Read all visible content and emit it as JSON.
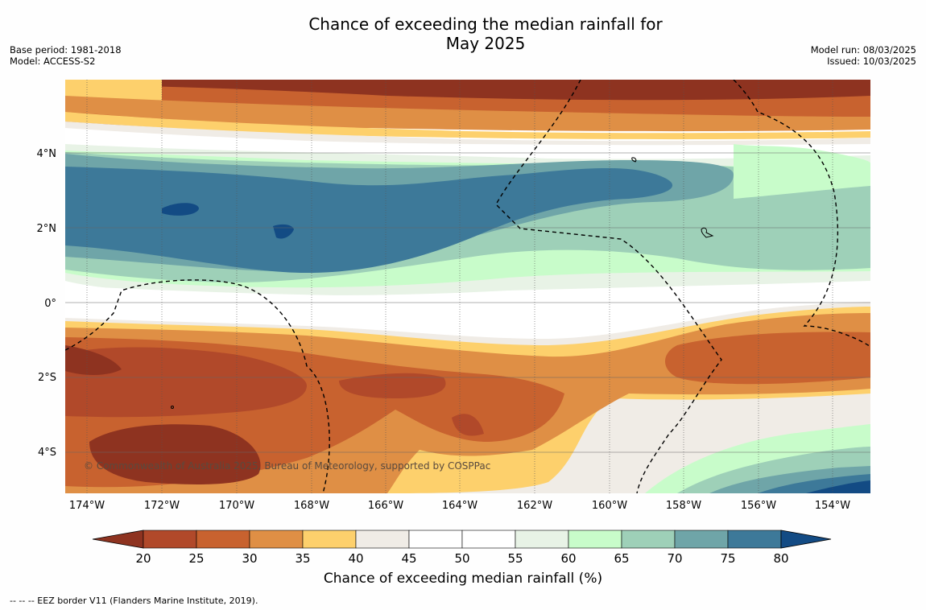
{
  "title_line1": "Chance of exceeding the median rainfall for",
  "title_line2": "May 2025",
  "meta_left": {
    "base_period": "Base period: 1981-2018",
    "model": "Model: ACCESS-S2"
  },
  "meta_right": {
    "model_run": "Model run: 08/03/2025",
    "issued": "Issued: 10/03/2025"
  },
  "lat_labels": [
    "4°N",
    "2°N",
    "0°",
    "2°S",
    "4°S"
  ],
  "lon_labels": [
    "174°W",
    "172°W",
    "170°W",
    "168°W",
    "166°W",
    "164°W",
    "162°W",
    "160°W",
    "158°W",
    "156°W",
    "154°W"
  ],
  "copyright": "© Commonwealth of Australia 2025, Bureau of Meteorology, supported by COSPPac",
  "colorbar": {
    "ticks": [
      "20",
      "25",
      "30",
      "35",
      "40",
      "45",
      "50",
      "55",
      "60",
      "65",
      "70",
      "75",
      "80"
    ],
    "label": "Chance of exceeding median rainfall (%)",
    "colors": [
      "#8e3320",
      "#b1492a",
      "#c8622f",
      "#df8f45",
      "#fdd06c",
      "#f0ece6",
      "#ffffff",
      "#ffffff",
      "#e8f3e6",
      "#c8fcca",
      "#9ed0b8",
      "#6fa5a8",
      "#3d7999",
      "#134b84"
    ]
  },
  "footnote": "--  --  -- EEZ border V11 (Flanders Marine Institute, 2019).",
  "map_data": {
    "type": "choropleth",
    "variable": "Chance of exceeding median rainfall (%)",
    "lon_range": [
      "174.6°W",
      "153°W"
    ],
    "lat_range": [
      "5.2°S",
      "5.9°N"
    ],
    "color_scale_percent": [
      20,
      25,
      30,
      35,
      40,
      45,
      50,
      55,
      60,
      65,
      70,
      75,
      80
    ],
    "regions": [
      {
        "area": "north of 5°N",
        "range": "20-35"
      },
      {
        "area": "3°N to 1°N, 174°W-164°W",
        "range": "70-80"
      },
      {
        "area": "2°N to 0°, 160°W-154°W",
        "range": "60-70"
      },
      {
        "area": "equator",
        "range": "45-55"
      },
      {
        "area": "1°S to 4°S, 174°W-166°W",
        "range": "20-30"
      },
      {
        "area": "south-east corner near 5°S, 154°W",
        "range": "75-80"
      }
    ]
  }
}
